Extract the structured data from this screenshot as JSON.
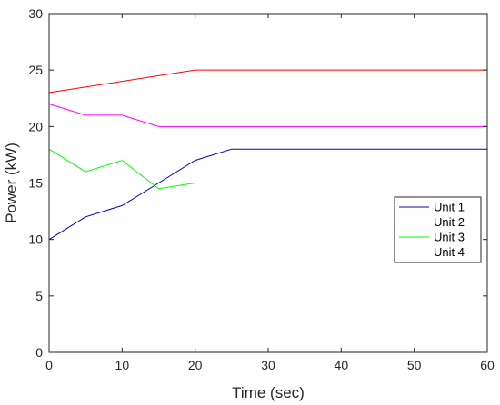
{
  "chart_data": {
    "type": "line",
    "title": "",
    "xlabel": "Time (sec)",
    "ylabel": "Power (kW)",
    "xlim": [
      0,
      60
    ],
    "ylim": [
      0,
      30
    ],
    "xticks": [
      0,
      10,
      20,
      30,
      40,
      50,
      60
    ],
    "yticks": [
      0,
      5,
      10,
      15,
      20,
      25,
      30
    ],
    "grid": false,
    "legend_position": "right-middle",
    "series": [
      {
        "name": "Unit 1",
        "color": "#0000a8",
        "x": [
          0,
          5,
          10,
          15,
          20,
          25,
          60
        ],
        "y": [
          10,
          12,
          13,
          15,
          17,
          18,
          18
        ]
      },
      {
        "name": "Unit 2",
        "color": "#ff0000",
        "x": [
          0,
          20,
          60
        ],
        "y": [
          23,
          25,
          25
        ]
      },
      {
        "name": "Unit 3",
        "color": "#00ff00",
        "x": [
          0,
          5,
          10,
          15,
          20,
          60
        ],
        "y": [
          18,
          16,
          17,
          14.5,
          15,
          15
        ]
      },
      {
        "name": "Unit 4",
        "color": "#ff00ff",
        "x": [
          0,
          5,
          10,
          15,
          60
        ],
        "y": [
          22,
          21,
          21,
          20,
          20
        ]
      }
    ]
  }
}
